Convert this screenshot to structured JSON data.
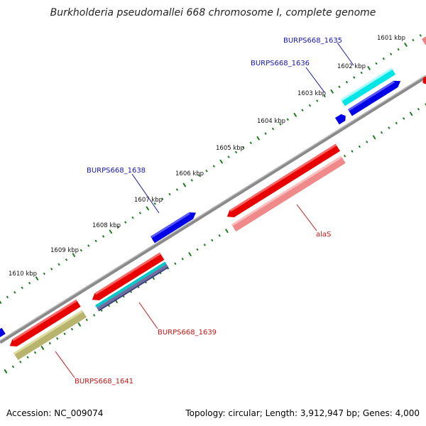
{
  "title": "Burkholderia pseudomallei 668 chromosome I, complete genome",
  "footer": {
    "accession": "Accession: NC_009074",
    "stats": "Topology: circular; Length: 3,912,947 bp; Genes: 4,000"
  },
  "ticks": [
    "1601 kbp",
    "1602 kbp",
    "1603 kbp",
    "1604 kbp",
    "1605 kbp",
    "1606 kbp",
    "1607 kbp",
    "1608 kbp",
    "1609 kbp",
    "1610 kbp"
  ],
  "gene_labels": [
    {
      "text": "BURPS668_1635",
      "strand": "forward"
    },
    {
      "text": "BURPS668_1636",
      "strand": "forward"
    },
    {
      "text": "BURPS668_1638",
      "strand": "forward"
    },
    {
      "text": "alaS",
      "strand": "reverse"
    },
    {
      "text": "BURPS668_1639",
      "strand": "reverse"
    },
    {
      "text": "BURPS668_1641",
      "strand": "reverse"
    }
  ],
  "colors": {
    "forward_label": "#1414b4",
    "reverse_label": "#c81414",
    "backbone": "#808080",
    "tick": "#1e7a1e"
  }
}
